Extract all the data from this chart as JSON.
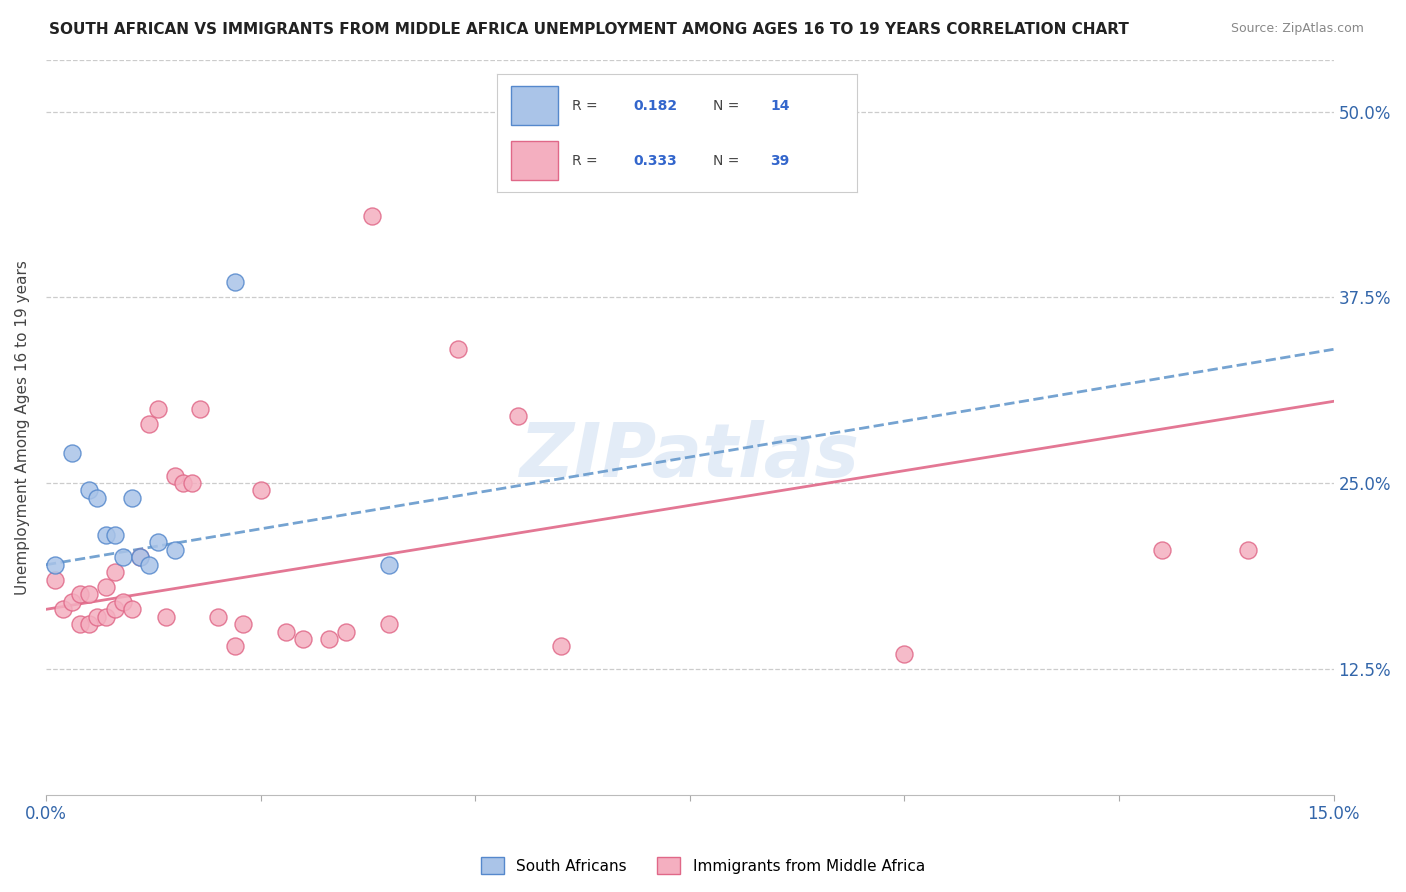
{
  "title": "SOUTH AFRICAN VS IMMIGRANTS FROM MIDDLE AFRICA UNEMPLOYMENT AMONG AGES 16 TO 19 YEARS CORRELATION CHART",
  "source": "Source: ZipAtlas.com",
  "ylabel": "Unemployment Among Ages 16 to 19 years",
  "ytick_labels": [
    "12.5%",
    "25.0%",
    "37.5%",
    "50.0%"
  ],
  "ytick_values": [
    0.125,
    0.25,
    0.375,
    0.5
  ],
  "xlim": [
    0.0,
    0.15
  ],
  "ylim": [
    0.04,
    0.535
  ],
  "sa_R": 0.182,
  "sa_N": 14,
  "im_R": 0.333,
  "im_N": 39,
  "sa_color": "#aac4e8",
  "im_color": "#f4afc0",
  "sa_edge_color": "#5588cc",
  "im_edge_color": "#e06888",
  "sa_line_color": "#6699cc",
  "im_line_color": "#e06888",
  "watermark": "ZIPatlas",
  "background_color": "#ffffff",
  "sa_x": [
    0.001,
    0.003,
    0.005,
    0.006,
    0.007,
    0.008,
    0.009,
    0.01,
    0.011,
    0.012,
    0.013,
    0.015,
    0.022,
    0.04
  ],
  "sa_y": [
    0.195,
    0.27,
    0.245,
    0.24,
    0.215,
    0.215,
    0.2,
    0.24,
    0.2,
    0.195,
    0.21,
    0.205,
    0.385,
    0.195
  ],
  "im_x": [
    0.001,
    0.002,
    0.003,
    0.004,
    0.004,
    0.005,
    0.005,
    0.006,
    0.007,
    0.007,
    0.008,
    0.008,
    0.009,
    0.01,
    0.011,
    0.012,
    0.013,
    0.014,
    0.015,
    0.016,
    0.017,
    0.018,
    0.02,
    0.022,
    0.023,
    0.025,
    0.028,
    0.03,
    0.033,
    0.035,
    0.038,
    0.04,
    0.048,
    0.055,
    0.06,
    0.08,
    0.1,
    0.13,
    0.14
  ],
  "im_y": [
    0.185,
    0.165,
    0.17,
    0.155,
    0.175,
    0.155,
    0.175,
    0.16,
    0.16,
    0.18,
    0.165,
    0.19,
    0.17,
    0.165,
    0.2,
    0.29,
    0.3,
    0.16,
    0.255,
    0.25,
    0.25,
    0.3,
    0.16,
    0.14,
    0.155,
    0.245,
    0.15,
    0.145,
    0.145,
    0.15,
    0.43,
    0.155,
    0.34,
    0.295,
    0.14,
    0.46,
    0.135,
    0.205,
    0.205
  ],
  "sa_trend_x0": 0.0,
  "sa_trend_y0": 0.195,
  "sa_trend_x1": 0.15,
  "sa_trend_y1": 0.34,
  "im_trend_x0": 0.0,
  "im_trend_y0": 0.165,
  "im_trend_x1": 0.15,
  "im_trend_y1": 0.305
}
